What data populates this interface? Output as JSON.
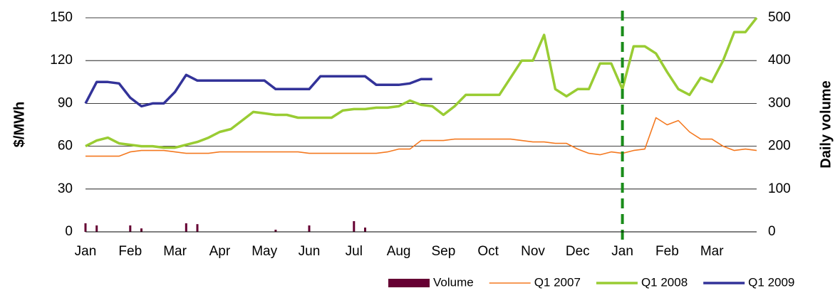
{
  "chart_data": {
    "type": "line",
    "y_title": "$/MWh",
    "y2_title": "Daily volume",
    "categories": [
      "Jan",
      null,
      null,
      null,
      "Feb",
      null,
      null,
      null,
      "Mar",
      null,
      null,
      null,
      "Apr",
      null,
      null,
      null,
      "May",
      null,
      null,
      null,
      "Jun",
      null,
      null,
      null,
      "Jul",
      null,
      null,
      null,
      "Aug",
      null,
      null,
      null,
      "Sep",
      null,
      null,
      null,
      "Oct",
      null,
      null,
      null,
      "Nov",
      null,
      null,
      null,
      "Dec",
      null,
      null,
      null,
      "Jan",
      null,
      null,
      null,
      "Feb",
      null,
      null,
      null,
      "Mar",
      null,
      null,
      null,
      null
    ],
    "ylim": [
      0,
      150
    ],
    "yticks": [
      0,
      30,
      60,
      90,
      120,
      150
    ],
    "y2lim": [
      0,
      500
    ],
    "y2ticks": [
      0,
      100,
      200,
      300,
      400,
      500
    ],
    "grid": true,
    "legend": "bottom",
    "vline": {
      "category_index": 48,
      "color": "#1a8c1a",
      "dashed": true
    },
    "series": [
      {
        "name": "Volume",
        "type": "bar",
        "axis": "y2",
        "color": "#660033",
        "values": [
          20,
          15,
          null,
          null,
          15,
          8,
          null,
          null,
          null,
          20,
          18,
          null,
          null,
          null,
          null,
          null,
          null,
          5,
          null,
          null,
          15,
          null,
          null,
          null,
          25,
          10,
          null,
          null,
          null,
          null,
          null,
          null,
          null,
          null,
          null,
          null,
          null,
          null,
          null,
          null,
          null,
          null,
          null,
          null,
          null,
          null,
          null,
          null,
          null,
          null,
          null,
          null,
          null,
          null,
          null,
          null,
          null,
          null,
          null,
          null,
          null
        ]
      },
      {
        "name": "Q1 2007",
        "type": "line",
        "color": "#f47920",
        "width": 1.6,
        "values": [
          53,
          53,
          53,
          53,
          56,
          57,
          57,
          57,
          56,
          55,
          55,
          55,
          56,
          56,
          56,
          56,
          56,
          56,
          56,
          56,
          55,
          55,
          55,
          55,
          55,
          55,
          55,
          56,
          58,
          58,
          64,
          64,
          64,
          65,
          65,
          65,
          65,
          65,
          65,
          64,
          63,
          63,
          62,
          62,
          58,
          55,
          54,
          56,
          55,
          57,
          58,
          80,
          75,
          78,
          70,
          65,
          65,
          60,
          57,
          58,
          57
        ]
      },
      {
        "name": "Q1 2008",
        "type": "line",
        "color": "#99cc33",
        "width": 3.5,
        "values": [
          60,
          64,
          66,
          62,
          61,
          60,
          60,
          59,
          59,
          61,
          63,
          66,
          70,
          72,
          78,
          84,
          83,
          82,
          82,
          80,
          80,
          80,
          80,
          85,
          86,
          86,
          87,
          87,
          88,
          92,
          89,
          88,
          82,
          88,
          96,
          96,
          96,
          96,
          108,
          120,
          120,
          138,
          100,
          95,
          100,
          100,
          118,
          118,
          100,
          130,
          130,
          125,
          112,
          100,
          96,
          108,
          105,
          120,
          140,
          140,
          150
        ]
      },
      {
        "name": "Q1 2009",
        "type": "line",
        "color": "#333399",
        "width": 3.5,
        "values": [
          90,
          105,
          105,
          104,
          94,
          88,
          90,
          90,
          98,
          110,
          106,
          106,
          106,
          106,
          106,
          106,
          106,
          100,
          100,
          100,
          100,
          109,
          109,
          109,
          109,
          109,
          103,
          103,
          103,
          104,
          107,
          107,
          null,
          null,
          null,
          null,
          null,
          null,
          null,
          null,
          null,
          null,
          null,
          null,
          null,
          null,
          null,
          null,
          null,
          null,
          null,
          null,
          null,
          null,
          null,
          null,
          null,
          null,
          null,
          null,
          null
        ]
      }
    ]
  }
}
